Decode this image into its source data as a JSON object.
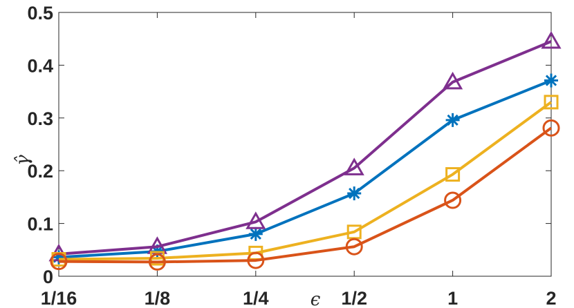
{
  "chart_data": {
    "type": "line",
    "title": "",
    "xlabel": "ϵ",
    "ylabel": "γ̂",
    "x": [
      "1/16",
      "1/8",
      "1/4",
      "1/2",
      "1",
      "2"
    ],
    "ylim": [
      0,
      0.5
    ],
    "yticks": [
      "0",
      "0.1",
      "0.2",
      "0.3",
      "0.4",
      "0.5"
    ],
    "grid": false,
    "legend": "none",
    "series": [
      {
        "color": "#0072BD",
        "marker": "asterisk",
        "values": [
          0.036,
          0.047,
          0.08,
          0.157,
          0.296,
          0.371
        ]
      },
      {
        "color": "#D95319",
        "marker": "circle",
        "values": [
          0.028,
          0.027,
          0.03,
          0.056,
          0.144,
          0.281
        ]
      },
      {
        "color": "#EDB120",
        "marker": "square",
        "values": [
          0.032,
          0.034,
          0.044,
          0.084,
          0.193,
          0.33
        ]
      },
      {
        "color": "#7E2F8E",
        "marker": "triangle",
        "values": [
          0.042,
          0.056,
          0.103,
          0.205,
          0.368,
          0.445
        ]
      }
    ]
  }
}
